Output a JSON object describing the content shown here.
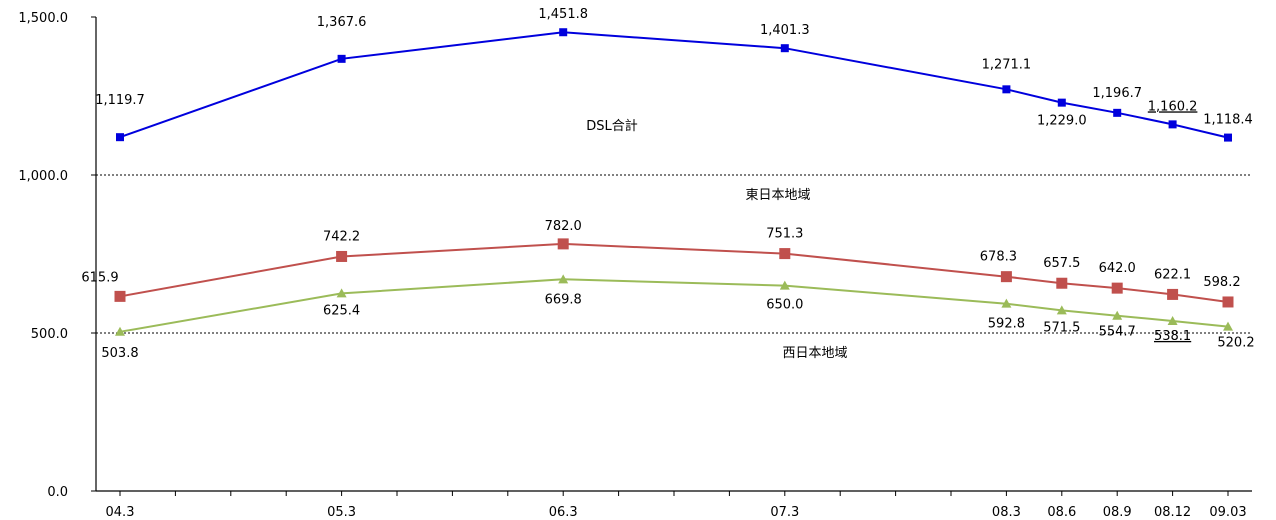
{
  "chart_data": {
    "type": "line",
    "title": "",
    "xlabel": "",
    "ylabel": "",
    "x": [
      "04.3",
      "05.3",
      "06.3",
      "07.3",
      "08.3",
      "08.6",
      "08.9",
      "08.12",
      "09.03"
    ],
    "x_months": [
      0,
      12,
      24,
      36,
      48,
      51,
      54,
      57,
      60
    ],
    "ylim": [
      0,
      1500
    ],
    "yticks": [
      0,
      500,
      1000,
      1500
    ],
    "ytick_labels": [
      "0.0",
      "500.0",
      "1,000.0",
      "1,500.0"
    ],
    "reference_lines": [
      500,
      1000
    ],
    "series": [
      {
        "name": "DSL合計",
        "color": "#0000dd",
        "marker": "square",
        "values": [
          1119.7,
          1367.6,
          1451.8,
          1401.3,
          1271.1,
          1229.0,
          1196.7,
          1160.2,
          1118.4
        ],
        "labels": [
          "1,119.7",
          "1,367.6",
          "1,451.8",
          "1,401.3",
          "1,271.1",
          "1,229.0",
          "1,196.7",
          "1,160.2",
          "1,118.4"
        ],
        "underlined": [
          false,
          false,
          false,
          false,
          false,
          false,
          false,
          true,
          false
        ]
      },
      {
        "name": "東日本地域",
        "color": "#c0504d",
        "marker": "square",
        "values": [
          615.9,
          742.2,
          782.0,
          751.3,
          678.3,
          657.5,
          642.0,
          622.1,
          598.2
        ],
        "labels": [
          "615.9",
          "742.2",
          "782.0",
          "751.3",
          "678.3",
          "657.5",
          "642.0",
          "622.1",
          "598.2"
        ],
        "underlined": [
          false,
          false,
          false,
          false,
          false,
          false,
          false,
          false,
          false
        ]
      },
      {
        "name": "西日本地域",
        "color": "#9bbb59",
        "marker": "triangle",
        "values": [
          503.8,
          625.4,
          669.8,
          650.0,
          592.8,
          571.5,
          554.7,
          538.1,
          520.2
        ],
        "labels": [
          "503.8",
          "625.4",
          "669.8",
          "650.0",
          "592.8",
          "571.5",
          "554.7",
          "538.1",
          "520.2"
        ],
        "underlined": [
          false,
          false,
          false,
          false,
          false,
          false,
          false,
          true,
          false
        ]
      }
    ],
    "grid": false,
    "legend": "none"
  }
}
